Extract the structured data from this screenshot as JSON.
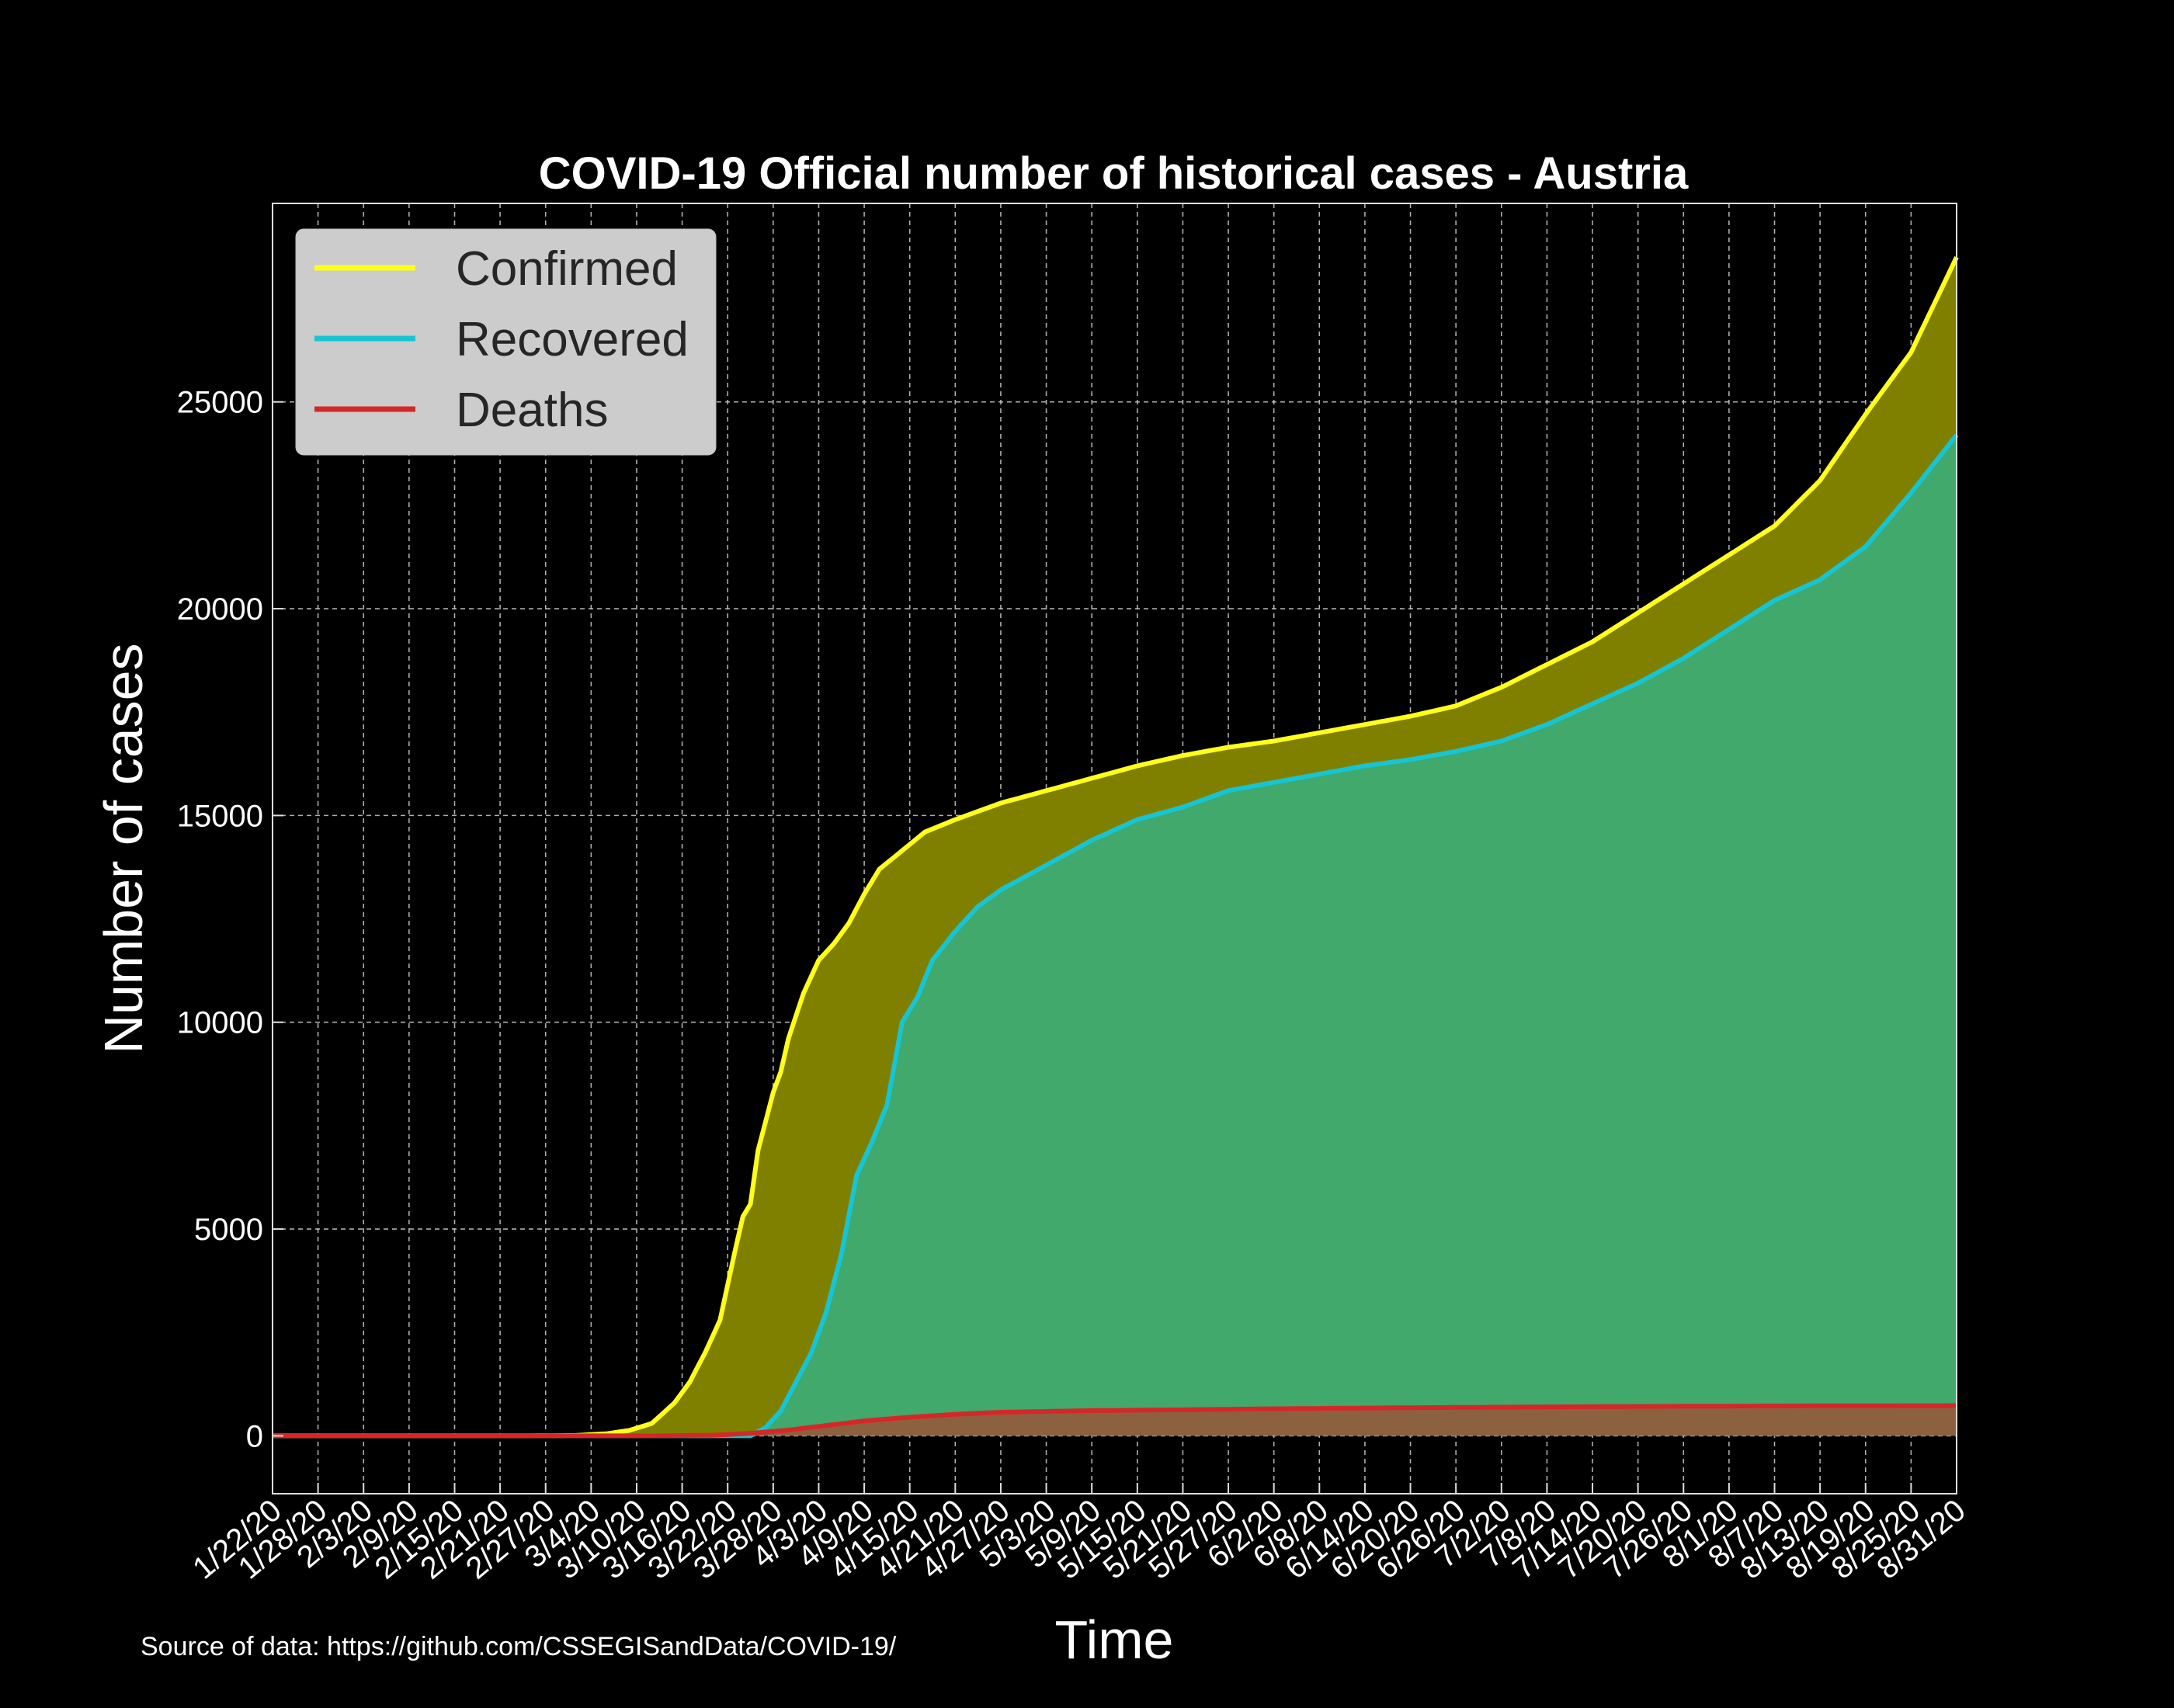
{
  "chart_data": {
    "type": "area",
    "title": "COVID-19 Official number of historical cases - Austria",
    "xlabel": "Time",
    "ylabel": "Number of cases",
    "source": "Source of data: https://github.com/CSSEGISandData/COVID-19/",
    "x_range": [
      "1/22/20",
      "8/31/20"
    ],
    "ylim": [
      -1400,
      29800
    ],
    "yticks": [
      0,
      5000,
      10000,
      15000,
      20000,
      25000
    ],
    "xtick_labels": [
      "1/22/20",
      "1/28/20",
      "2/3/20",
      "2/9/20",
      "2/15/20",
      "2/21/20",
      "2/27/20",
      "3/4/20",
      "3/10/20",
      "3/16/20",
      "3/22/20",
      "3/28/20",
      "4/3/20",
      "4/9/20",
      "4/15/20",
      "4/21/20",
      "4/27/20",
      "5/3/20",
      "5/9/20",
      "5/15/20",
      "5/21/20",
      "5/27/20",
      "6/2/20",
      "6/8/20",
      "6/14/20",
      "6/20/20",
      "6/26/20",
      "7/2/20",
      "7/8/20",
      "7/14/20",
      "7/20/20",
      "7/26/20",
      "8/1/20",
      "8/7/20",
      "8/13/20",
      "8/19/20",
      "8/25/20",
      "8/31/20"
    ],
    "grid": true,
    "legend_position": "top-left",
    "colors": {
      "confirmed_line": "#ffff1a",
      "confirmed_fill": "#808000",
      "recovered_line": "#17c4d3",
      "recovered_fill": "#40a96b",
      "deaths_line": "#d62728",
      "deaths_fill": "#8c6140",
      "background": "#000000"
    },
    "series": [
      {
        "name": "Confirmed",
        "points": [
          [
            "1/22/20",
            0
          ],
          [
            "2/24/20",
            0
          ],
          [
            "2/28/20",
            5
          ],
          [
            "3/2/20",
            10
          ],
          [
            "3/6/20",
            50
          ],
          [
            "3/9/20",
            130
          ],
          [
            "3/12/20",
            300
          ],
          [
            "3/15/20",
            800
          ],
          [
            "3/17/20",
            1300
          ],
          [
            "3/19/20",
            2000
          ],
          [
            "3/21/20",
            2800
          ],
          [
            "3/23/20",
            4500
          ],
          [
            "3/24/20",
            5300
          ],
          [
            "3/25/20",
            5600
          ],
          [
            "3/26/20",
            6900
          ],
          [
            "3/28/20",
            8300
          ],
          [
            "3/29/20",
            8800
          ],
          [
            "3/30/20",
            9600
          ],
          [
            "4/1/20",
            10700
          ],
          [
            "4/3/20",
            11500
          ],
          [
            "4/5/20",
            11900
          ],
          [
            "4/7/20",
            12400
          ],
          [
            "4/9/20",
            13100
          ],
          [
            "4/11/20",
            13700
          ],
          [
            "4/13/20",
            14000
          ],
          [
            "4/15/20",
            14300
          ],
          [
            "4/17/20",
            14600
          ],
          [
            "4/21/20",
            14900
          ],
          [
            "4/27/20",
            15300
          ],
          [
            "5/3/20",
            15600
          ],
          [
            "5/9/20",
            15900
          ],
          [
            "5/15/20",
            16200
          ],
          [
            "5/21/20",
            16450
          ],
          [
            "5/27/20",
            16650
          ],
          [
            "6/2/20",
            16800
          ],
          [
            "6/8/20",
            17000
          ],
          [
            "6/14/20",
            17200
          ],
          [
            "6/20/20",
            17400
          ],
          [
            "6/26/20",
            17650
          ],
          [
            "7/2/20",
            18100
          ],
          [
            "7/8/20",
            18650
          ],
          [
            "7/14/20",
            19200
          ],
          [
            "7/20/20",
            19900
          ],
          [
            "7/26/20",
            20600
          ],
          [
            "8/1/20",
            21300
          ],
          [
            "8/7/20",
            22000
          ],
          [
            "8/13/20",
            23100
          ],
          [
            "8/19/20",
            24700
          ],
          [
            "8/25/20",
            26200
          ],
          [
            "8/31/20",
            28500
          ]
        ]
      },
      {
        "name": "Recovered",
        "points": [
          [
            "1/22/20",
            0
          ],
          [
            "3/25/20",
            0
          ],
          [
            "3/27/20",
            200
          ],
          [
            "3/29/20",
            600
          ],
          [
            "3/31/20",
            1300
          ],
          [
            "4/2/20",
            2000
          ],
          [
            "4/4/20",
            3000
          ],
          [
            "4/6/20",
            4400
          ],
          [
            "4/8/20",
            6300
          ],
          [
            "4/10/20",
            7100
          ],
          [
            "4/12/20",
            8000
          ],
          [
            "4/14/20",
            10000
          ],
          [
            "4/16/20",
            10600
          ],
          [
            "4/18/20",
            11500
          ],
          [
            "4/21/20",
            12200
          ],
          [
            "4/24/20",
            12800
          ],
          [
            "4/27/20",
            13200
          ],
          [
            "5/3/20",
            13800
          ],
          [
            "5/9/20",
            14400
          ],
          [
            "5/15/20",
            14900
          ],
          [
            "5/21/20",
            15200
          ],
          [
            "5/27/20",
            15600
          ],
          [
            "6/2/20",
            15800
          ],
          [
            "6/8/20",
            16000
          ],
          [
            "6/14/20",
            16200
          ],
          [
            "6/20/20",
            16350
          ],
          [
            "6/26/20",
            16550
          ],
          [
            "7/2/20",
            16800
          ],
          [
            "7/8/20",
            17200
          ],
          [
            "7/14/20",
            17700
          ],
          [
            "7/20/20",
            18200
          ],
          [
            "7/26/20",
            18800
          ],
          [
            "8/1/20",
            19500
          ],
          [
            "8/7/20",
            20200
          ],
          [
            "8/13/20",
            20700
          ],
          [
            "8/19/20",
            21500
          ],
          [
            "8/25/20",
            22800
          ],
          [
            "8/31/20",
            24200
          ]
        ]
      },
      {
        "name": "Deaths",
        "points": [
          [
            "1/22/20",
            0
          ],
          [
            "3/12/20",
            0
          ],
          [
            "3/20/20",
            15
          ],
          [
            "3/25/20",
            60
          ],
          [
            "3/30/20",
            140
          ],
          [
            "4/4/20",
            250
          ],
          [
            "4/9/20",
            360
          ],
          [
            "4/15/20",
            450
          ],
          [
            "4/21/20",
            520
          ],
          [
            "4/27/20",
            570
          ],
          [
            "5/9/20",
            610
          ],
          [
            "5/21/20",
            630
          ],
          [
            "6/2/20",
            655
          ],
          [
            "6/20/20",
            680
          ],
          [
            "7/8/20",
            700
          ],
          [
            "7/26/20",
            715
          ],
          [
            "8/13/20",
            725
          ],
          [
            "8/31/20",
            730
          ]
        ]
      }
    ]
  }
}
